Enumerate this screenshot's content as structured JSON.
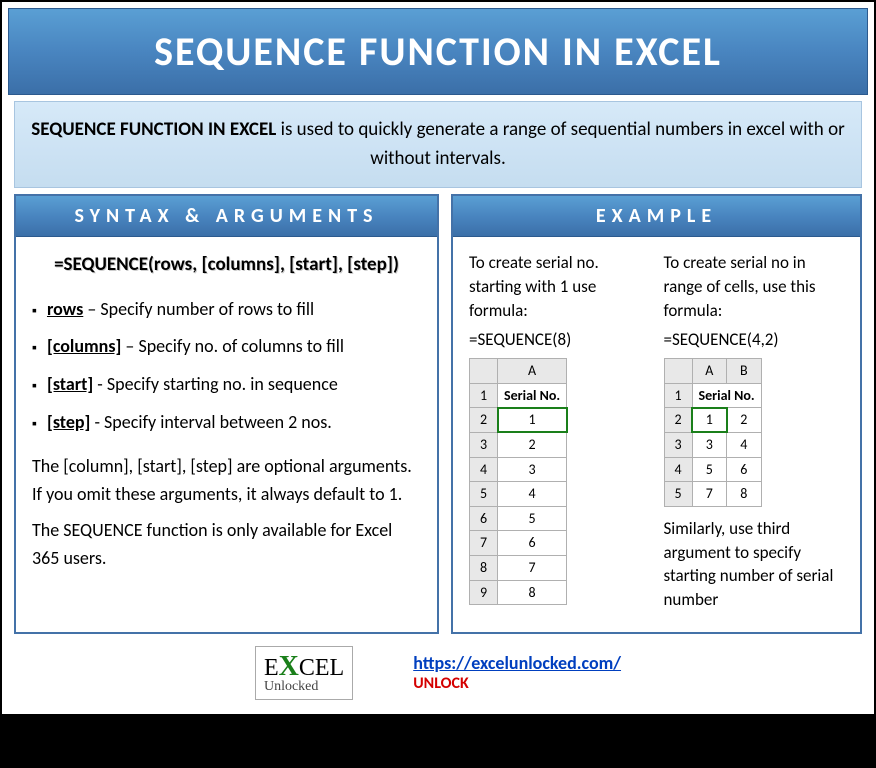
{
  "title": "SEQUENCE FUNCTION IN EXCEL",
  "subtitle_bold": "SEQUENCE FUNCTION IN EXCEL",
  "subtitle_rest": " is used to quickly generate a range of sequential numbers in excel with or without intervals.",
  "syntax": {
    "heading": "SYNTAX & ARGUMENTS",
    "formula": "=SEQUENCE(rows, [columns], [start], [step])",
    "args": [
      {
        "name": "rows",
        "desc": " – Specify number of rows to fill"
      },
      {
        "name": "[columns]",
        "desc": " – Specify no. of columns to fill"
      },
      {
        "name": "[start]",
        "desc": " - Specify starting no. in sequence"
      },
      {
        "name": "[step]",
        "desc": " - Specify interval between 2  nos."
      }
    ],
    "note1": "The [column], [start], [step] are optional arguments. If you omit these arguments, it always default to 1.",
    "note2": "The SEQUENCE function is only available for Excel 365 users."
  },
  "example": {
    "heading": "EXAMPLE",
    "left": {
      "intro": "To create serial no. starting with 1 use formula:",
      "formula": "=SEQUENCE(8)",
      "col_label": "A",
      "header": "Serial No.",
      "rows": [
        "1",
        "2",
        "3",
        "4",
        "5",
        "6",
        "7",
        "8"
      ]
    },
    "right": {
      "intro": "To create serial no in range of cells, use this formula:",
      "formula": "=SEQUENCE(4,2)",
      "col_a": "A",
      "col_b": "B",
      "header": "Serial No.",
      "rows": [
        [
          "1",
          "2"
        ],
        [
          "3",
          "4"
        ],
        [
          "5",
          "6"
        ],
        [
          "7",
          "8"
        ]
      ],
      "tail": "Similarly, use third argument to specify starting number of serial number"
    }
  },
  "footer": {
    "logo_top1": "E",
    "logo_x": "X",
    "logo_top2": "CEL",
    "logo_sub": "Unlocked",
    "url": "https://excelunlocked.com/",
    "unlock": "UNLOCK"
  }
}
